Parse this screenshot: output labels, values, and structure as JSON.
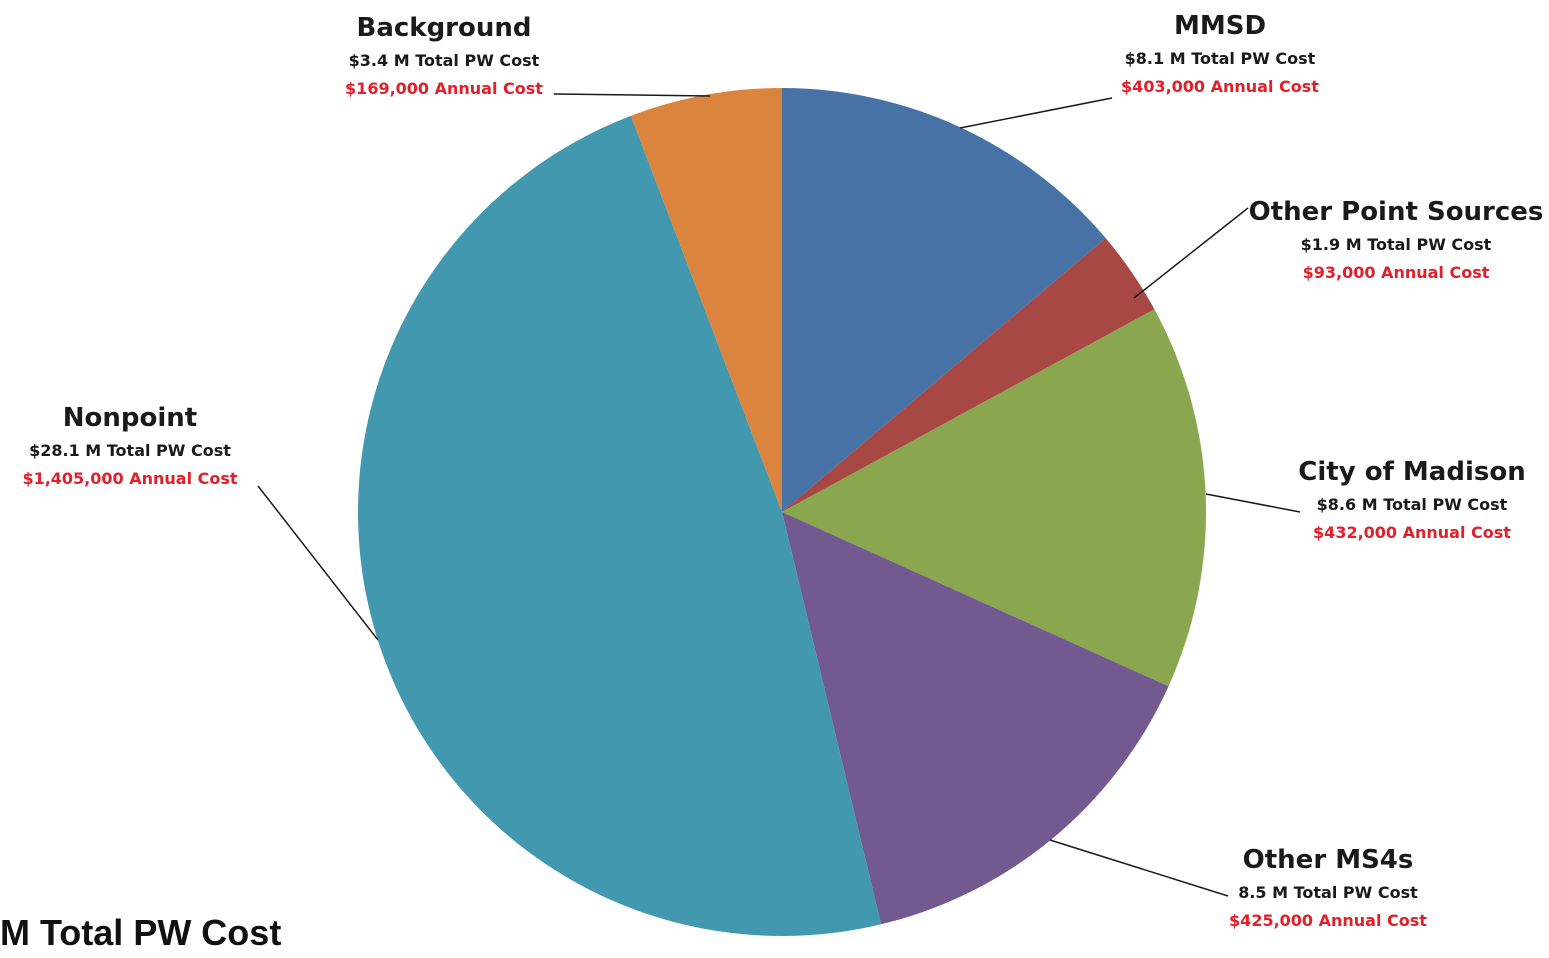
{
  "chart_data": {
    "type": "pie",
    "slices": [
      {
        "name": "MMSD",
        "value": 8.1,
        "total_pw_cost": "$8.1 M Total PW Cost",
        "annual_cost": "$403,000 Annual Cost",
        "color": "#4672a5"
      },
      {
        "name": "Other Point Sources",
        "value": 1.9,
        "total_pw_cost": "$1.9 M Total PW Cost",
        "annual_cost": "$93,000 Annual Cost",
        "color": "#a84845"
      },
      {
        "name": "City of Madison",
        "value": 8.6,
        "total_pw_cost": "$8.6 M Total PW Cost",
        "annual_cost": "$432,000 Annual Cost",
        "color": "#8aa64e"
      },
      {
        "name": "Other MS4s",
        "value": 8.5,
        "total_pw_cost": "8.5 M Total PW Cost",
        "annual_cost": "$425,000 Annual Cost",
        "color": "#72598f"
      },
      {
        "name": "Nonpoint",
        "value": 28.1,
        "total_pw_cost": "$28.1 M Total PW Cost",
        "annual_cost": "$1,405,000 Annual Cost",
        "color": "#4298ae"
      },
      {
        "name": "Background",
        "value": 3.4,
        "total_pw_cost": "$3.4 M Total PW Cost",
        "annual_cost": "$169,000 Annual Cost",
        "color": "#db843d"
      }
    ],
    "start_direction": "top",
    "direction": "clockwise",
    "legend": "none"
  },
  "footer_text": "M Total PW Cost"
}
